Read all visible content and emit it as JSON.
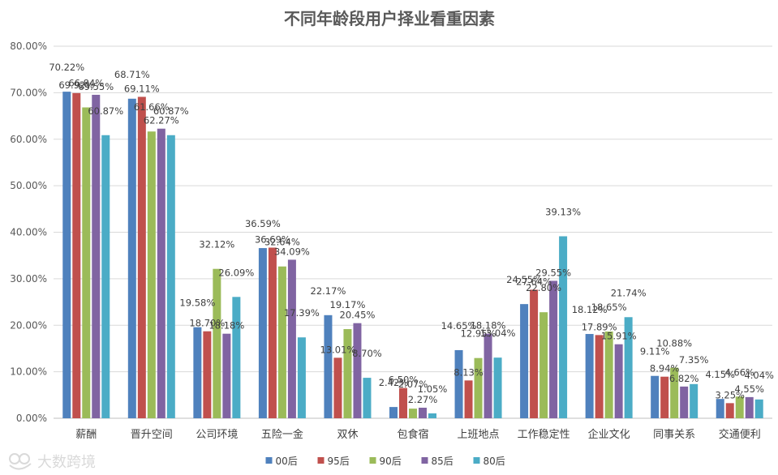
{
  "watermark": "大数跨境",
  "chart_data": {
    "type": "bar",
    "title": "不同年龄段用户择业看重因素",
    "xlabel": "",
    "ylabel": "",
    "ylim": [
      0,
      80
    ],
    "yticks": [
      "0.00%",
      "10.00%",
      "20.00%",
      "30.00%",
      "40.00%",
      "50.00%",
      "60.00%",
      "70.00%",
      "80.00%"
    ],
    "grid": true,
    "legend_position": "bottom",
    "categories": [
      "薪酬",
      "晋升空间",
      "公司环境",
      "五险一金",
      "双休",
      "包食宿",
      "上班地点",
      "工作稳定性",
      "企业文化",
      "同事关系",
      "交通便利"
    ],
    "series": [
      {
        "name": "00后",
        "color": "#4f81bd",
        "values": [
          70.22,
          68.71,
          19.58,
          36.59,
          22.17,
          2.42,
          14.65,
          24.55,
          18.12,
          9.11,
          4.15
        ],
        "labels": [
          "70.22%",
          "68.71%",
          "19.58%",
          "36.59%",
          "22.17%",
          "2.42%",
          "14.65%",
          "24.55%",
          "18.12%",
          "9.11%",
          "4.15%"
        ]
      },
      {
        "name": "95后",
        "color": "#c0504d",
        "values": [
          69.92,
          69.11,
          18.7,
          36.69,
          13.01,
          6.5,
          8.13,
          27.64,
          17.89,
          8.94,
          3.25
        ],
        "labels": [
          "69.92%",
          "69.11%",
          "18.70%",
          "36.69%",
          "13.01%",
          "6.50%",
          "8.13%",
          "27.64%",
          "17.89%",
          "8.94%",
          "3.25%"
        ]
      },
      {
        "name": "90后",
        "color": "#9bbb59",
        "values": [
          66.84,
          61.66,
          32.12,
          32.64,
          19.17,
          2.07,
          12.95,
          22.8,
          18.65,
          10.88,
          4.66
        ],
        "labels": [
          "66.84%",
          "61.66%",
          "32.12%",
          "32.64%",
          "19.17%",
          "2.07%",
          "12.95%",
          "22.80%",
          "18.65%",
          "10.88%",
          "4.66%"
        ]
      },
      {
        "name": "85后",
        "color": "#8064a2",
        "values": [
          69.55,
          62.27,
          18.18,
          34.09,
          20.45,
          2.27,
          18.18,
          29.55,
          15.91,
          6.82,
          4.55
        ],
        "labels": [
          "69.55%",
          "62.27%",
          "18.18%",
          "34.09%",
          "20.45%",
          "2.27%",
          "18.18%",
          "29.55%",
          "15.91%",
          "6.82%",
          "4.55%"
        ]
      },
      {
        "name": "80后",
        "color": "#4bacc6",
        "values": [
          60.87,
          60.87,
          26.09,
          17.39,
          8.7,
          1.05,
          13.04,
          39.13,
          21.74,
          7.35,
          4.04
        ],
        "labels": [
          "60.87%",
          "60.87%",
          "26.09%",
          "17.39%",
          "8.70%",
          "1.05%",
          "13.04%",
          "39.13%",
          "21.74%",
          "7.35%",
          "4.04%"
        ]
      }
    ]
  }
}
